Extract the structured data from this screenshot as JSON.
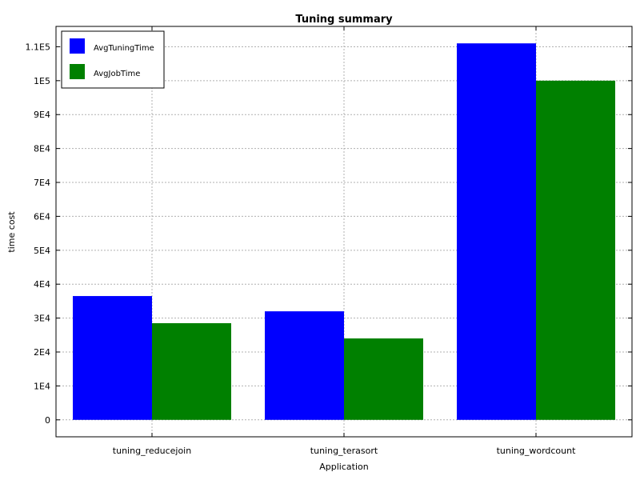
{
  "chart_data": {
    "type": "bar",
    "title": "Tuning summary",
    "xlabel": "Application",
    "ylabel": "time cost",
    "categories": [
      "tuning_reducejoin",
      "tuning_terasort",
      "tuning_wordcount"
    ],
    "series": [
      {
        "name": "AvgTuningTime",
        "values": [
          36500,
          32000,
          111000
        ],
        "color": "#0000ff"
      },
      {
        "name": "AvgJobTime",
        "values": [
          28500,
          24000,
          100000
        ],
        "color": "#008000"
      }
    ],
    "ylim": [
      -5000,
      116000
    ],
    "yticks": [
      0,
      10000,
      20000,
      30000,
      40000,
      50000,
      60000,
      70000,
      80000,
      90000,
      100000,
      110000
    ],
    "ytick_labels": [
      "0",
      "1E4",
      "2E4",
      "3E4",
      "4E4",
      "5E4",
      "6E4",
      "7E4",
      "8E4",
      "9E4",
      "1E5",
      "1.1E5"
    ],
    "grid": true,
    "legend_position": "top-left"
  }
}
